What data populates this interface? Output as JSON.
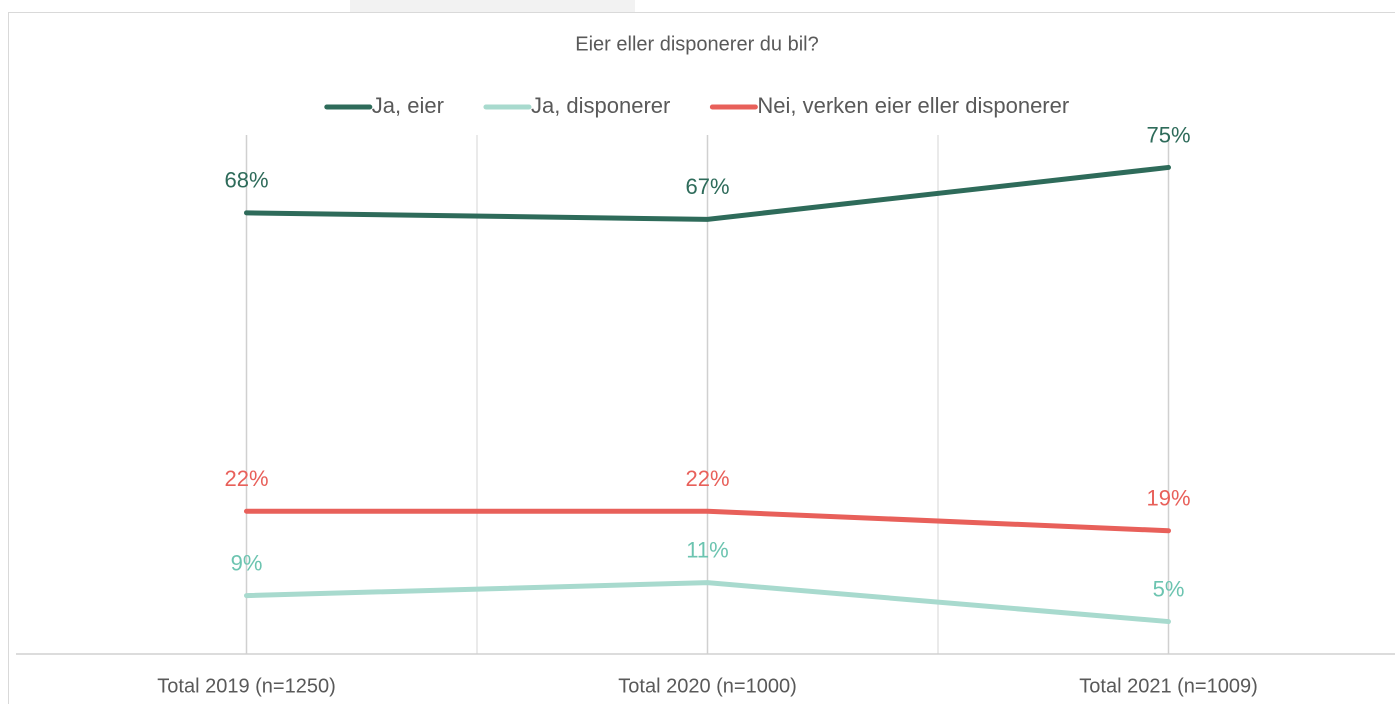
{
  "chart_data": {
    "type": "line",
    "title": "Eier eller disponerer du bil?",
    "categories": [
      "Total 2019 (n=1250)",
      "Total 2020 (n=1000)",
      "Total 2021 (n=1009)"
    ],
    "series": [
      {
        "name": "Ja, eier",
        "color": "#2e6b5a",
        "values": [
          68,
          67,
          75
        ],
        "value_labels": [
          "68%",
          "67%",
          "75%"
        ]
      },
      {
        "name": "Ja, disponerer",
        "color": "#a8dace",
        "values": [
          9,
          11,
          5
        ],
        "value_labels": [
          "9%",
          "11%",
          "5%"
        ]
      },
      {
        "name": "Nei, verken eier eller disponerer",
        "color": "#e8605a",
        "values": [
          22,
          22,
          19
        ],
        "value_labels": [
          "22%",
          "22%",
          "19%"
        ]
      }
    ],
    "ylim": [
      0,
      80
    ],
    "legend": "top",
    "grid": true
  }
}
